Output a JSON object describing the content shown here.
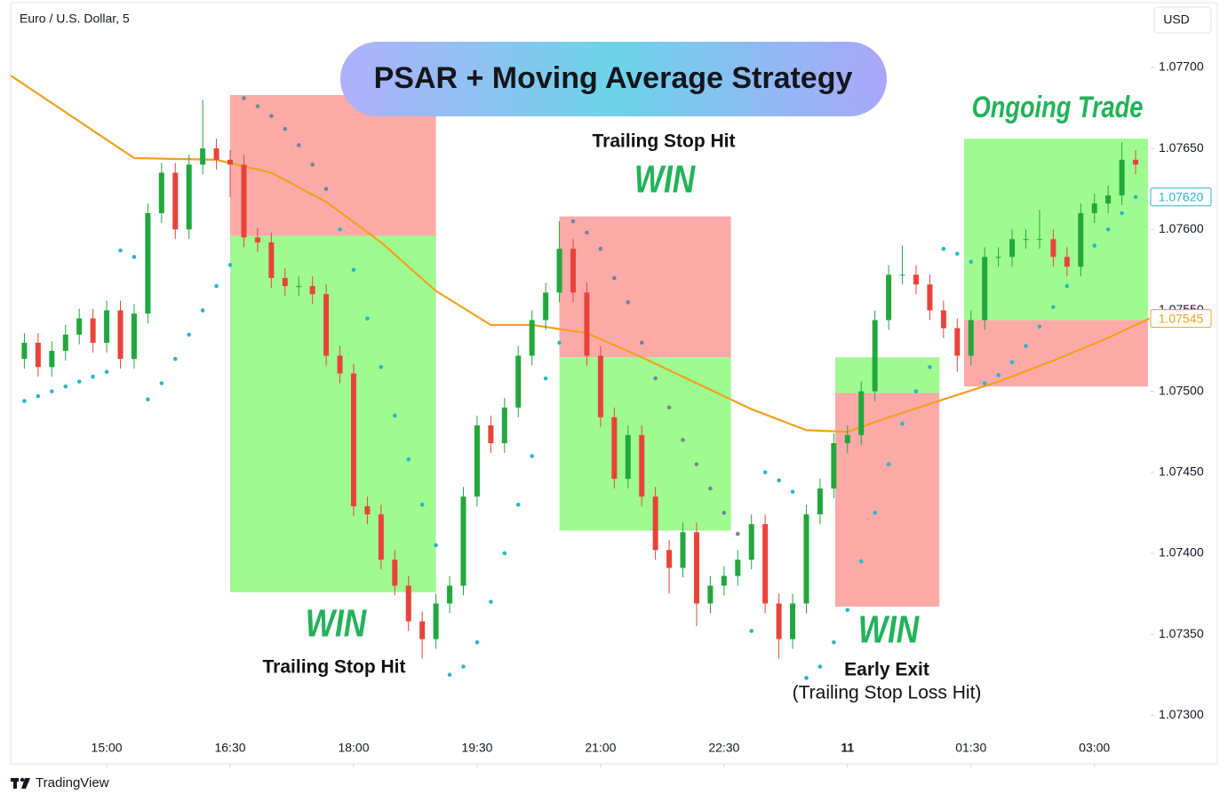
{
  "header": {
    "symbol": "Euro / U.S. Dollar, 5",
    "currency": "USD",
    "brand": "TradingView"
  },
  "chart_data": {
    "type": "candlestick",
    "title": "PSAR + Moving Average Strategy",
    "x": [
      1,
      2,
      3,
      4,
      5,
      6,
      7,
      8,
      9,
      10,
      11,
      12,
      13,
      14,
      15,
      16,
      17,
      18,
      19,
      20,
      21,
      22,
      23,
      24,
      25,
      26,
      27,
      28,
      29,
      30,
      31,
      32,
      33,
      34,
      35,
      36,
      37,
      38,
      39,
      40,
      41,
      42,
      43,
      44,
      45,
      46,
      47,
      48,
      49,
      50,
      51,
      52,
      53,
      54,
      55,
      56,
      57,
      58,
      59,
      60,
      61,
      62,
      63,
      64,
      65,
      66,
      67,
      68,
      69,
      70,
      71,
      72,
      73,
      74,
      75,
      76,
      77,
      78,
      79,
      80,
      81,
      82
    ],
    "open": [
      1.0752,
      1.0753,
      1.07515,
      1.07525,
      1.07535,
      1.07545,
      1.0753,
      1.0755,
      1.0752,
      1.07548,
      1.0761,
      1.07635,
      1.076,
      1.0764,
      1.0765,
      1.07643,
      1.0764,
      1.07595,
      1.07592,
      1.0757,
      1.07565,
      1.07565,
      1.0756,
      1.07522,
      1.07511,
      1.07429,
      1.07424,
      1.07396,
      1.0738,
      1.07358,
      1.07347,
      1.07369,
      1.0738,
      1.07435,
      1.07479,
      1.07468,
      1.0749,
      1.07522,
      1.07544,
      1.07561,
      1.07588,
      1.07561,
      1.07522,
      1.07484,
      1.07446,
      1.07473,
      1.07435,
      1.07402,
      1.07391,
      1.07413,
      1.07369,
      1.0738,
      1.07386,
      1.07396,
      1.07418,
      1.07369,
      1.07347,
      1.07369,
      1.07424,
      1.0744,
      1.07468,
      1.07473,
      1.075,
      1.07544,
      1.07572,
      1.07572,
      1.07566,
      1.0755,
      1.07539,
      1.07522,
      1.07544,
      1.07583,
      1.07583,
      1.07594,
      1.07594,
      1.07594,
      1.07583,
      1.07577,
      1.0761,
      1.07616,
      1.07621,
      1.07643
    ],
    "high": [
      1.07536,
      1.07536,
      1.07531,
      1.07541,
      1.07551,
      1.07551,
      1.07556,
      1.07556,
      1.07554,
      1.07616,
      1.07641,
      1.07641,
      1.07646,
      1.0768,
      1.07656,
      1.07649,
      1.07646,
      1.07601,
      1.07598,
      1.07576,
      1.07571,
      1.07571,
      1.07566,
      1.07528,
      1.07517,
      1.07435,
      1.0743,
      1.07402,
      1.07386,
      1.07364,
      1.07375,
      1.07386,
      1.07441,
      1.07485,
      1.07485,
      1.07496,
      1.07528,
      1.0755,
      1.07567,
      1.07605,
      1.07594,
      1.07567,
      1.07528,
      1.0749,
      1.07479,
      1.07479,
      1.07441,
      1.07408,
      1.07419,
      1.07419,
      1.07386,
      1.07392,
      1.07402,
      1.07424,
      1.07424,
      1.07375,
      1.07375,
      1.0743,
      1.07446,
      1.07474,
      1.07479,
      1.07506,
      1.0755,
      1.07578,
      1.0759,
      1.07578,
      1.07572,
      1.07556,
      1.07545,
      1.0755,
      1.07589,
      1.07589,
      1.076,
      1.076,
      1.07612,
      1.076,
      1.07589,
      1.07616,
      1.07622,
      1.07627,
      1.07654,
      1.07649
    ],
    "low": [
      1.07514,
      1.07509,
      1.07509,
      1.07519,
      1.07529,
      1.07524,
      1.07524,
      1.07514,
      1.07514,
      1.07542,
      1.07604,
      1.07594,
      1.07594,
      1.07634,
      1.07637,
      1.0762,
      1.07589,
      1.07586,
      1.07564,
      1.07559,
      1.07559,
      1.07554,
      1.07516,
      1.07505,
      1.07423,
      1.07418,
      1.0739,
      1.07374,
      1.07352,
      1.07335,
      1.07341,
      1.07363,
      1.07374,
      1.07429,
      1.07462,
      1.07462,
      1.07484,
      1.07516,
      1.07538,
      1.07555,
      1.07555,
      1.07516,
      1.07478,
      1.0744,
      1.0744,
      1.07429,
      1.07396,
      1.07375,
      1.07385,
      1.07355,
      1.07363,
      1.07374,
      1.0738,
      1.0739,
      1.07363,
      1.07335,
      1.07341,
      1.07363,
      1.07418,
      1.07434,
      1.07462,
      1.07467,
      1.07494,
      1.07538,
      1.07566,
      1.0756,
      1.07544,
      1.07533,
      1.07512,
      1.07516,
      1.07538,
      1.07577,
      1.07577,
      1.07588,
      1.07588,
      1.07577,
      1.07571,
      1.07571,
      1.07604,
      1.0761,
      1.07615,
      1.07634
    ],
    "close": [
      1.0753,
      1.07515,
      1.07525,
      1.07535,
      1.07545,
      1.0753,
      1.0755,
      1.0752,
      1.07548,
      1.0761,
      1.07635,
      1.076,
      1.0764,
      1.0765,
      1.07643,
      1.0764,
      1.07595,
      1.07592,
      1.0757,
      1.07565,
      1.07565,
      1.0756,
      1.07522,
      1.07511,
      1.07429,
      1.07424,
      1.07396,
      1.0738,
      1.07358,
      1.07347,
      1.07369,
      1.0738,
      1.07435,
      1.07479,
      1.07468,
      1.0749,
      1.07522,
      1.07544,
      1.07561,
      1.07588,
      1.07561,
      1.07522,
      1.07484,
      1.07446,
      1.07473,
      1.07435,
      1.07402,
      1.07391,
      1.07413,
      1.07369,
      1.0738,
      1.07386,
      1.07396,
      1.07418,
      1.07369,
      1.07347,
      1.07369,
      1.07424,
      1.0744,
      1.07468,
      1.07473,
      1.075,
      1.07544,
      1.07572,
      1.07572,
      1.07566,
      1.0755,
      1.07539,
      1.07522,
      1.07544,
      1.07583,
      1.07583,
      1.07594,
      1.07594,
      1.07594,
      1.07583,
      1.07577,
      1.0761,
      1.07616,
      1.07621,
      1.07643,
      1.0764
    ],
    "up_color": "#21a83c",
    "down_color": "#e8433a",
    "moving_average": {
      "color": "#f5a020",
      "x": [
        0,
        9,
        15,
        19,
        23,
        27,
        31,
        35,
        38,
        42,
        46,
        50,
        54,
        58,
        61,
        64,
        68,
        72,
        76,
        80,
        83
      ],
      "values": [
        1.07695,
        1.07644,
        1.07643,
        1.07635,
        1.07617,
        1.07592,
        1.07562,
        1.07541,
        1.07541,
        1.07536,
        1.07521,
        1.07505,
        1.07489,
        1.07476,
        1.07475,
        1.07484,
        1.07495,
        1.07506,
        1.07519,
        1.07533,
        1.07545
      ]
    },
    "psar": [
      {
        "color": "#2ab6c8",
        "values": [
          1.07494,
          1.07497,
          1.075,
          1.07503,
          1.07506,
          1.07509,
          1.07512,
          1.07587,
          1.07583,
          1.07495,
          1.07505,
          1.0752,
          1.07535,
          1.0755,
          1.07565,
          1.07578,
          null,
          null,
          null,
          null,
          null,
          null,
          null,
          1.076,
          1.07575,
          1.07545,
          1.07515,
          1.07485,
          1.07458,
          1.0743,
          1.07405,
          1.07325,
          1.0733,
          1.07345,
          1.0737,
          1.074,
          1.0743,
          1.0746,
          1.07508,
          1.0753,
          null,
          null,
          null,
          null,
          null,
          null,
          null,
          null,
          null,
          null,
          null,
          null,
          null,
          1.07352,
          1.0745,
          1.07445,
          1.07438,
          1.07323,
          1.0733,
          1.07345,
          1.07365,
          1.07395,
          1.07425,
          1.07455,
          1.0748,
          1.075,
          1.07515,
          1.07588,
          1.07585,
          1.0758,
          1.07505,
          1.0751,
          1.07518,
          1.07528,
          1.0754,
          1.07552,
          1.07565,
          1.07578,
          1.0759,
          1.076,
          1.0761,
          1.0762
        ]
      },
      {
        "color": "#6f8599",
        "values": [
          null,
          null,
          null,
          null,
          null,
          null,
          null,
          null,
          null,
          null,
          null,
          null,
          null,
          null,
          null,
          null,
          1.07681,
          1.07676,
          1.0767,
          1.07662,
          1.07652,
          1.0764,
          1.07625,
          null,
          null,
          null,
          null,
          null,
          null,
          null,
          null,
          null,
          null,
          null,
          null,
          null,
          null,
          null,
          null,
          null,
          1.07605,
          1.07598,
          1.07588,
          1.0757,
          1.07555,
          1.0753,
          1.07508,
          1.0749,
          1.0747,
          1.07455,
          1.0744,
          1.07425,
          1.07412,
          null,
          null,
          null,
          null,
          null,
          null,
          null,
          null,
          null,
          null,
          null,
          null,
          null,
          null,
          null,
          null,
          null,
          null,
          null,
          null,
          null,
          null,
          null,
          null,
          null,
          null,
          null,
          null,
          null
        ]
      }
    ],
    "profit_color": "#9ffb90",
    "loss_color": "#fcaaa8",
    "zones": [
      {
        "x": [
          16,
          31
        ],
        "profit": [
          1.07376,
          1.07596
        ],
        "loss": [
          1.07596,
          1.07683
        ]
      },
      {
        "x": [
          40,
          52.5
        ],
        "profit": [
          1.07414,
          1.07521
        ],
        "loss": [
          1.07521,
          1.07608
        ]
      },
      {
        "x": [
          60.1,
          67.7
        ],
        "profit": [
          1.07499,
          1.07521
        ],
        "loss": [
          1.07367,
          1.07499
        ]
      },
      {
        "x": [
          69.5,
          82.9
        ],
        "profit": [
          1.07544,
          1.07656
        ],
        "loss": [
          1.07503,
          1.07544
        ]
      }
    ],
    "price_labels": [
      {
        "value": 1.0762,
        "label": "1.07620",
        "color": "#2ab6c8"
      },
      {
        "value": 1.07545,
        "label": "1.07545",
        "color": "#f5a020"
      }
    ],
    "annotations": [
      {
        "text": "Ongoing Trade"
      },
      {
        "text": "Trailing Stop Hit"
      },
      {
        "text": "WIN"
      },
      {
        "text": "WIN"
      },
      {
        "text": "Trailing Stop Hit"
      },
      {
        "text": "WIN"
      },
      {
        "text": "Early Exit"
      },
      {
        "text": "(Trailing Stop Loss Hit)"
      }
    ],
    "xlim": [
      0,
      83.1
    ],
    "ylim": [
      1.0727,
      1.0774
    ],
    "xticks": [
      {
        "value": 7,
        "label": "15:00"
      },
      {
        "value": 16,
        "label": "16:30"
      },
      {
        "value": 25,
        "label": "18:00"
      },
      {
        "value": 34,
        "label": "19:30"
      },
      {
        "value": 43,
        "label": "21:00"
      },
      {
        "value": 52,
        "label": "22:30"
      },
      {
        "value": 61,
        "label": "11"
      },
      {
        "value": 70,
        "label": "01:30"
      },
      {
        "value": 79,
        "label": "03:00"
      }
    ],
    "yticks": [
      {
        "value": 1.077,
        "label": "1.07700"
      },
      {
        "value": 1.0765,
        "label": "1.07650"
      },
      {
        "value": 1.076,
        "label": "1.07600"
      },
      {
        "value": 1.0755,
        "label": "1.07550"
      },
      {
        "value": 1.075,
        "label": "1.07500"
      },
      {
        "value": 1.0745,
        "label": "1.07450"
      },
      {
        "value": 1.074,
        "label": "1.07400"
      },
      {
        "value": 1.0735,
        "label": "1.07350"
      },
      {
        "value": 1.073,
        "label": "1.07300"
      }
    ]
  }
}
